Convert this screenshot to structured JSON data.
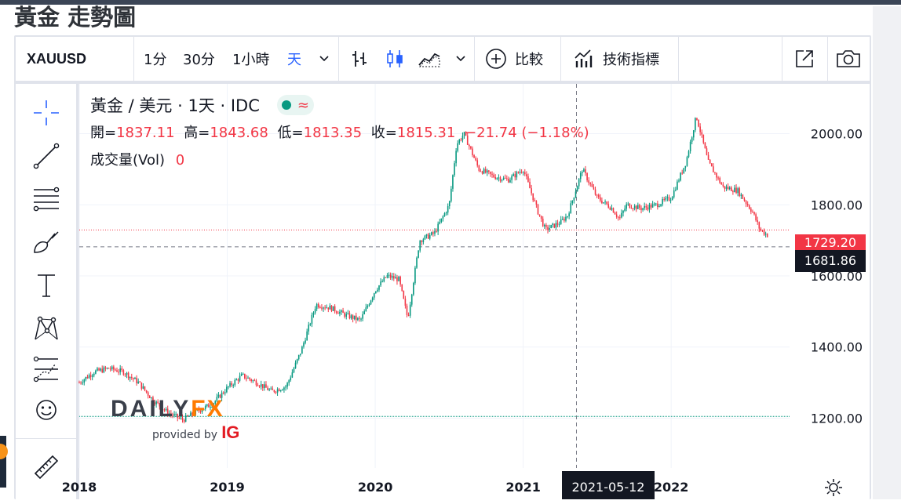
{
  "page": {
    "title": "黃金 走勢圖"
  },
  "toolbar": {
    "symbol": "XAUUSD",
    "intervals": [
      "1分",
      "30分",
      "1小時",
      "天"
    ],
    "active_interval": "天",
    "compare_label": "比較",
    "indicators_label": "技術指標"
  },
  "legend": {
    "title": "黃金 / 美元 · 1天 · IDC",
    "open_label": "開=",
    "open": "1837.11",
    "high_label": "高=",
    "high": "1843.68",
    "low_label": "低=",
    "low": "1813.35",
    "close_label": "收=",
    "close": "1815.31",
    "change": "−21.74 (−1.18%)",
    "volume_label": "成交量(Vol)",
    "volume": "0"
  },
  "watermark": {
    "brand_a": "DAILY",
    "brand_b": "FX",
    "provided": "provided by",
    "ig": "IG"
  },
  "colors": {
    "up": "#089981",
    "down": "#f23645",
    "accent": "#2962ff",
    "price_label_dark": "#131722",
    "watermark_orange": "#ff7a00"
  },
  "chart_data": {
    "type": "candlestick",
    "x_ticks": [
      "2018",
      "2019",
      "2020",
      "2021",
      "2022"
    ],
    "y_ticks": [
      "1200.00",
      "1400.00",
      "1600.00",
      "1800.00",
      "2000.00"
    ],
    "ylim": [
      1060,
      2140
    ],
    "xlim": [
      2018.0,
      2022.8
    ],
    "series": [
      {
        "x": [
          2018.0,
          2018.1,
          2018.2,
          2018.3,
          2018.4,
          2018.5,
          2018.6,
          2018.7,
          2018.8,
          2018.9,
          2019.0,
          2019.1,
          2019.2,
          2019.3,
          2019.4,
          2019.5,
          2019.6,
          2019.7,
          2019.8,
          2019.9,
          2020.0,
          2020.08,
          2020.16,
          2020.22,
          2020.3,
          2020.4,
          2020.5,
          2020.55,
          2020.6,
          2020.7,
          2020.8,
          2020.9,
          2021.0,
          2021.1,
          2021.15,
          2021.25,
          2021.3,
          2021.4,
          2021.5,
          2021.6,
          2021.65,
          2021.7,
          2021.8,
          2021.9,
          2022.0,
          2022.1,
          2022.17,
          2022.25,
          2022.35,
          2022.45,
          2022.55,
          2022.6,
          2022.65
        ],
        "y": [
          1300,
          1330,
          1340,
          1330,
          1300,
          1250,
          1215,
          1195,
          1220,
          1240,
          1285,
          1320,
          1300,
          1275,
          1290,
          1390,
          1520,
          1510,
          1490,
          1475,
          1560,
          1600,
          1590,
          1480,
          1700,
          1720,
          1800,
          1970,
          2000,
          1900,
          1880,
          1870,
          1900,
          1780,
          1730,
          1750,
          1770,
          1900,
          1820,
          1790,
          1760,
          1800,
          1790,
          1800,
          1820,
          1920,
          2050,
          1920,
          1850,
          1840,
          1780,
          1730,
          1715
        ]
      }
    ],
    "current_price_label": "1729.20",
    "crosshair_price_label": "1681.86",
    "crosshair_date_label": "2021-05-12"
  }
}
